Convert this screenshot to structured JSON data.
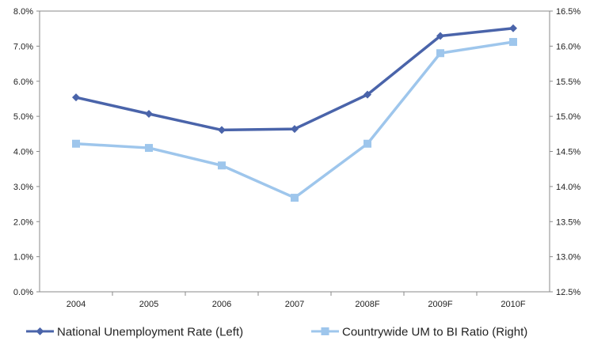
{
  "chart_data": {
    "type": "line",
    "title": "",
    "xlabel": "",
    "ylabel": "",
    "categories": [
      "2004",
      "2005",
      "2006",
      "2007",
      "2008F",
      "2009F",
      "2010F"
    ],
    "y_left": {
      "ticks": [
        "0.0%",
        "1.0%",
        "2.0%",
        "3.0%",
        "4.0%",
        "5.0%",
        "6.0%",
        "7.0%",
        "8.0%"
      ],
      "range": [
        0,
        8
      ]
    },
    "y_right": {
      "ticks": [
        "12.5%",
        "13.0%",
        "13.5%",
        "14.0%",
        "14.5%",
        "15.0%",
        "15.5%",
        "16.0%",
        "16.5%"
      ],
      "range": [
        12.5,
        16.5
      ]
    },
    "series": [
      {
        "name": "National Unemployment Rate (Left)",
        "axis": "left",
        "color": "#4a64aa",
        "marker": "diamond",
        "values": [
          5.54,
          5.07,
          4.61,
          4.64,
          5.62,
          7.29,
          7.51
        ]
      },
      {
        "name": "Countrywide UM to BI Ratio (Right)",
        "axis": "right",
        "color": "#9ec6ec",
        "marker": "square",
        "values": [
          14.61,
          14.55,
          14.3,
          13.84,
          14.61,
          15.9,
          16.06
        ]
      }
    ],
    "grid": false,
    "legend_position": "bottom"
  }
}
